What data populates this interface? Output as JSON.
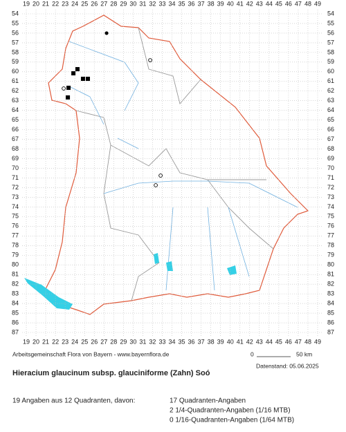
{
  "map": {
    "xticks": [
      19,
      20,
      21,
      22,
      23,
      24,
      25,
      26,
      27,
      28,
      29,
      30,
      31,
      32,
      33,
      34,
      35,
      36,
      37,
      38,
      39,
      40,
      41,
      42,
      43,
      44,
      45,
      46,
      47,
      48,
      49
    ],
    "yticks": [
      54,
      55,
      56,
      57,
      58,
      59,
      60,
      61,
      62,
      63,
      64,
      65,
      66,
      67,
      68,
      69,
      70,
      71,
      72,
      73,
      74,
      75,
      76,
      77,
      78,
      79,
      80,
      81,
      82,
      83,
      84,
      85,
      86,
      87
    ],
    "points": [
      {
        "kind": "dot",
        "x": 27.27,
        "y": 56.0
      },
      {
        "kind": "ring",
        "x": 31.76,
        "y": 58.8
      },
      {
        "kind": "square",
        "x": 24.27,
        "y": 59.73
      },
      {
        "kind": "square",
        "x": 23.85,
        "y": 60.16
      },
      {
        "kind": "square",
        "x": 24.84,
        "y": 60.73
      },
      {
        "kind": "square",
        "x": 25.34,
        "y": 60.73
      },
      {
        "kind": "square",
        "x": 23.35,
        "y": 61.66
      },
      {
        "kind": "ring",
        "x": 22.85,
        "y": 61.73
      },
      {
        "kind": "square",
        "x": 23.28,
        "y": 62.66
      },
      {
        "kind": "ring",
        "x": 32.83,
        "y": 70.75
      },
      {
        "kind": "ring",
        "x": 32.33,
        "y": 71.75
      }
    ]
  },
  "footer": {
    "credit": "Arbeitsgemeinschaft Flora von Bayern - www.bayernflora.de",
    "scale_start": "0",
    "scale_end": "50 km",
    "date": "Datenstand: 05.06.2025",
    "title": "Hieracium glaucinum subsp. glauciniforme (Zahn) Soó",
    "summary": "19 Angaben aus 12 Quadranten, davon:",
    "counts": [
      "17 Quadranten-Angaben",
      "2 1/4-Quadranten-Angaben (1/16 MTB)",
      "0 1/16-Quadranten-Angaben (1/64 MTB)"
    ]
  }
}
